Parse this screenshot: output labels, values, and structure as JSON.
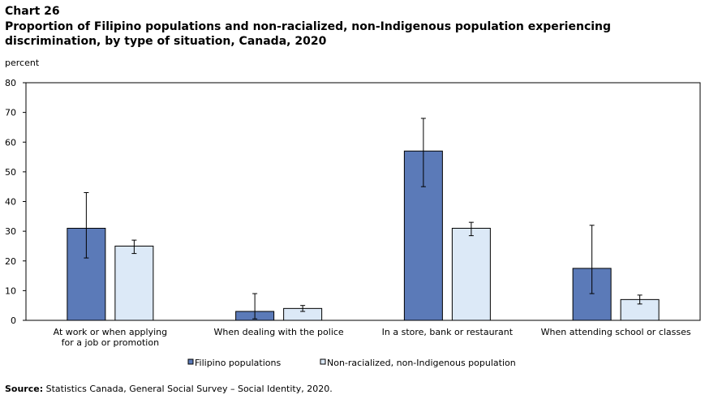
{
  "header": {
    "chart_number": "Chart 26",
    "title": "Proportion of Filipino populations and non-racialized, non-Indigenous population experiencing discrimination, by type of situation, Canada, 2020"
  },
  "source": {
    "label": "Source:",
    "text": "Statistics Canada, General Social Survey – Social Identity, 2020."
  },
  "colors": {
    "filipino": "#5b7ab8",
    "non_racialized": "#dce9f7"
  },
  "chart_data": {
    "type": "bar",
    "ylabel": "percent",
    "ylim": [
      0,
      80
    ],
    "yticks": [
      0,
      10,
      20,
      30,
      40,
      50,
      60,
      70,
      80
    ],
    "grid": false,
    "legend_position": "bottom",
    "categories": [
      [
        "At work or when applying",
        "for a job or promotion"
      ],
      [
        "When dealing with the police"
      ],
      [
        "In a store, bank or restaurant"
      ],
      [
        "When attending school or classes"
      ]
    ],
    "series": [
      {
        "name": "Filipino populations",
        "values": [
          31,
          3,
          57,
          17.5
        ],
        "error_low": [
          21,
          0.5,
          45,
          9
        ],
        "error_high": [
          43,
          9,
          68,
          32
        ]
      },
      {
        "name": "Non-racialized, non-Indigenous population",
        "values": [
          25,
          4,
          31,
          7
        ],
        "error_low": [
          22.5,
          3,
          28.5,
          5.5
        ],
        "error_high": [
          27,
          5,
          33,
          8.5
        ]
      }
    ]
  }
}
